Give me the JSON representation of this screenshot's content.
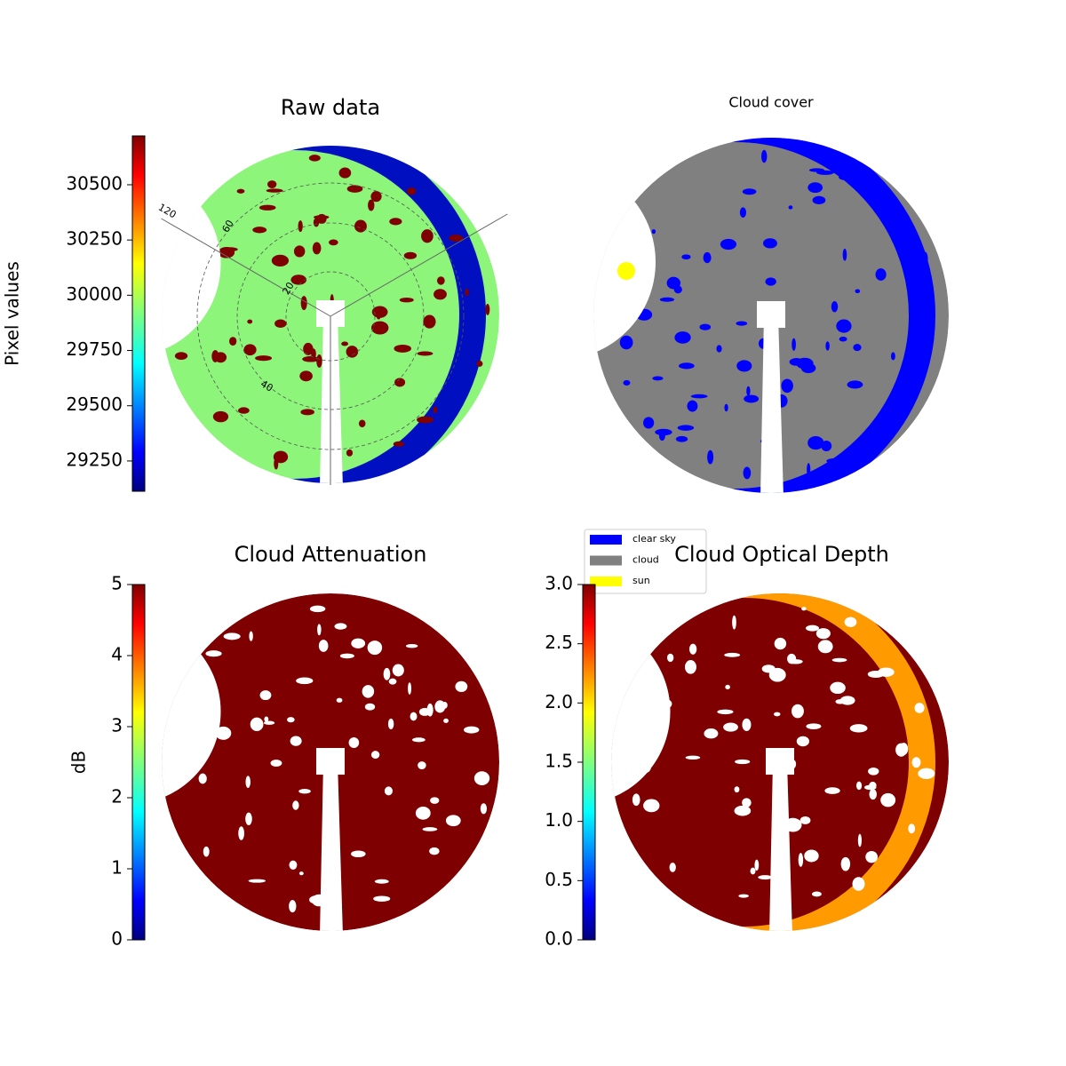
{
  "chart_data": [
    {
      "type": "image",
      "title": "Raw data",
      "colorbar_label": "Pixel values",
      "colormap": "jet",
      "ylim": [
        29113,
        30721
      ],
      "yticks": [
        29250,
        29500,
        29750,
        30000,
        30250,
        30500
      ],
      "annotations": [
        "120",
        "60",
        "20",
        "40"
      ]
    },
    {
      "type": "image",
      "title": "Cloud cover",
      "legend": [
        {
          "name": "clear sky",
          "color": "#0000ff"
        },
        {
          "name": "cloud",
          "color": "#808080"
        },
        {
          "name": "sun",
          "color": "#ffff00"
        }
      ]
    },
    {
      "type": "image",
      "title": "Cloud Attenuation",
      "colorbar_label": "dB",
      "colormap": "jet",
      "ylim": [
        0,
        5
      ],
      "yticks": [
        0,
        1,
        2,
        3,
        4,
        5
      ]
    },
    {
      "type": "image",
      "title": "Cloud Optical Depth",
      "colormap": "jet",
      "ylim": [
        0,
        3
      ],
      "yticks": [
        {
          "value": 0,
          "label": "0.0"
        },
        0.5,
        {
          "value": 1,
          "label": "1.0"
        },
        1.5,
        {
          "value": 2,
          "label": "2.0"
        },
        2.5,
        {
          "value": 3,
          "label": "3.0"
        }
      ]
    }
  ]
}
